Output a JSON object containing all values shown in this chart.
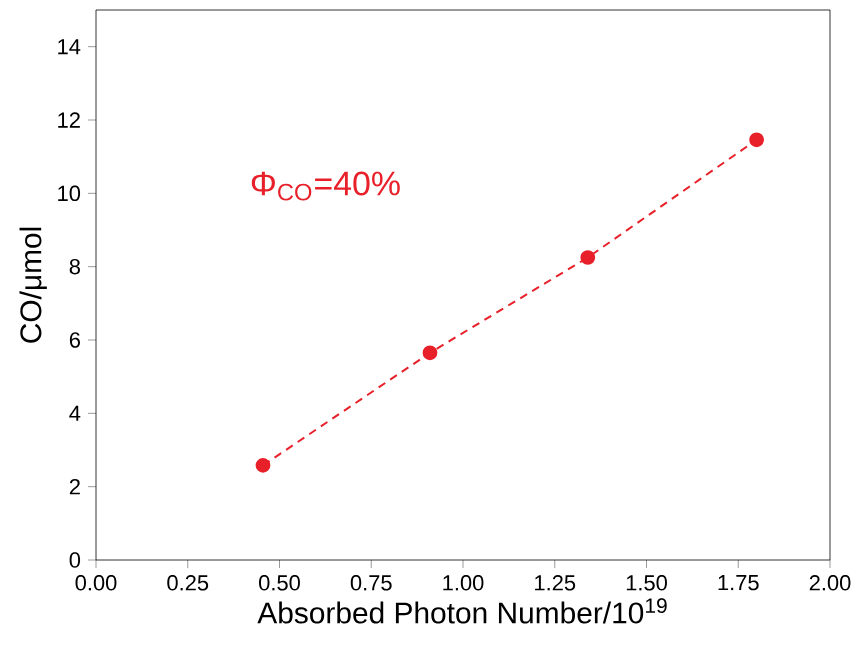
{
  "chart_data": {
    "type": "line",
    "xlabel": "Absorbed Photon Number/10$^{19}$",
    "ylabel": "CO/μmol",
    "x": [
      0.455,
      0.91,
      1.34,
      1.8
    ],
    "series": [
      {
        "color": "#e8202a",
        "values": [
          2.58,
          5.65,
          8.25,
          11.46
        ]
      }
    ],
    "marker": "circle",
    "line_style": "dashed",
    "grid": false,
    "xlim": [
      0,
      2
    ],
    "ylim": [
      0,
      15
    ],
    "xticks": [
      {
        "value": 0,
        "label": "0.00"
      },
      0.25,
      {
        "value": 0.5,
        "label": "0.50"
      },
      0.75,
      {
        "value": 1,
        "label": "1.00"
      },
      1.25,
      {
        "value": 1.5,
        "label": "1.50"
      },
      1.75,
      {
        "value": 2,
        "label": "2.00"
      }
    ],
    "yticks": [
      0,
      2,
      4,
      6,
      8,
      10,
      12,
      14
    ],
    "annotations": [
      "Φ$_{CO}$=40%"
    ]
  }
}
